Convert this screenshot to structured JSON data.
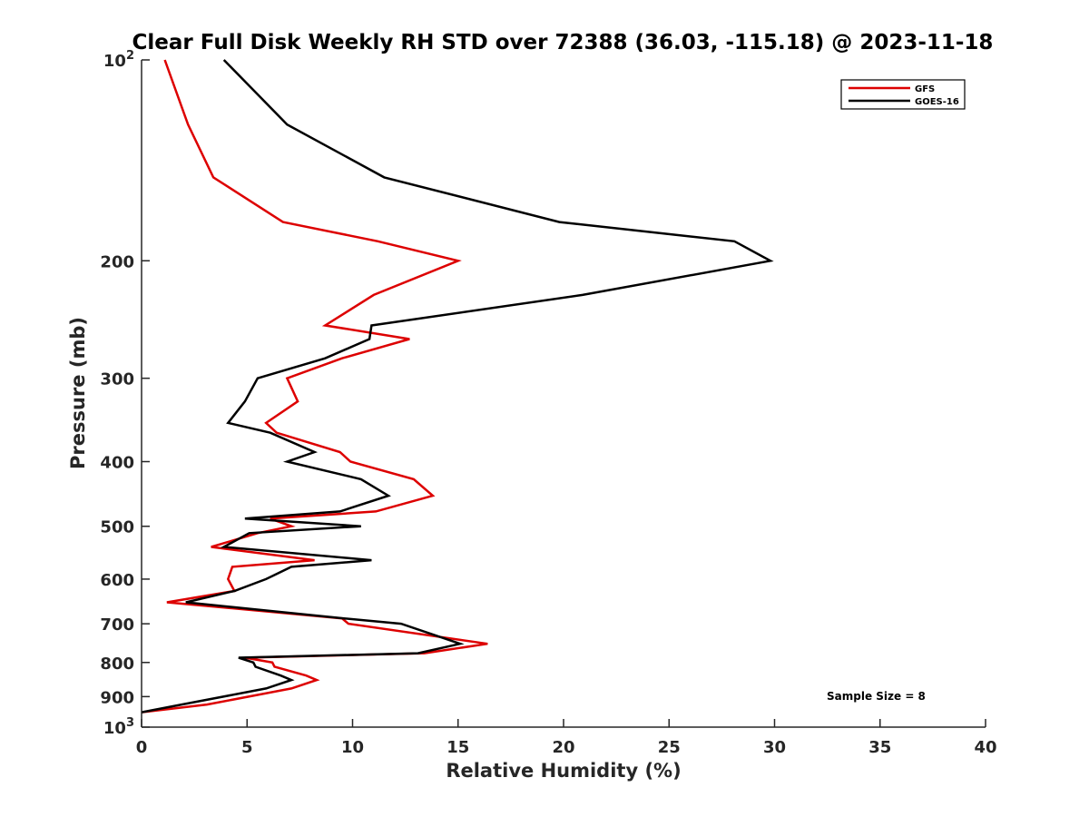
{
  "chart_data": {
    "type": "line",
    "title": "Clear Full Disk Weekly RH STD over 72388 (36.03, -115.18) @ 2023-11-18",
    "xlabel": "Relative Humidity (%)",
    "ylabel": "Pressure (mb)",
    "xlim": [
      0,
      40
    ],
    "ylim": [
      100,
      1000
    ],
    "y_scale": "log",
    "y_reversed": true,
    "x_ticks": [
      {
        "value": 0,
        "label": "0"
      },
      {
        "value": 5,
        "label": "5"
      },
      {
        "value": 10,
        "label": "10"
      },
      {
        "value": 15,
        "label": "15"
      },
      {
        "value": 20,
        "label": "20"
      },
      {
        "value": 25,
        "label": "25"
      },
      {
        "value": 30,
        "label": "30"
      },
      {
        "value": 35,
        "label": "35"
      },
      {
        "value": 40,
        "label": "40"
      }
    ],
    "y_ticks": [
      {
        "value": 100,
        "label": "10",
        "sup": "2"
      },
      {
        "value": 200,
        "label": "200",
        "sup": ""
      },
      {
        "value": 300,
        "label": "300",
        "sup": ""
      },
      {
        "value": 400,
        "label": "400",
        "sup": ""
      },
      {
        "value": 500,
        "label": "500",
        "sup": ""
      },
      {
        "value": 600,
        "label": "600",
        "sup": ""
      },
      {
        "value": 700,
        "label": "700",
        "sup": ""
      },
      {
        "value": 800,
        "label": "800",
        "sup": ""
      },
      {
        "value": 900,
        "label": "900",
        "sup": ""
      },
      {
        "value": 1000,
        "label": "10",
        "sup": "3"
      }
    ],
    "grid": false,
    "legend_position": "top-right",
    "annotation": "Sample Size = 8",
    "series": [
      {
        "name": "GFS",
        "color": "#dd0000",
        "points": [
          [
            1.1,
            100
          ],
          [
            2.2,
            125
          ],
          [
            3.4,
            150
          ],
          [
            6.7,
            175
          ],
          [
            11.2,
            187
          ],
          [
            15.0,
            200
          ],
          [
            11.0,
            225
          ],
          [
            8.7,
            250
          ],
          [
            12.7,
            262
          ],
          [
            9.5,
            280
          ],
          [
            6.9,
            300
          ],
          [
            7.4,
            325
          ],
          [
            5.9,
            350
          ],
          [
            6.4,
            362
          ],
          [
            9.4,
            387
          ],
          [
            9.9,
            400
          ],
          [
            12.9,
            425
          ],
          [
            13.8,
            450
          ],
          [
            11.1,
            475
          ],
          [
            6.1,
            487
          ],
          [
            7.1,
            500
          ],
          [
            5.5,
            512
          ],
          [
            3.3,
            537
          ],
          [
            8.2,
            562
          ],
          [
            4.3,
            575
          ],
          [
            4.1,
            600
          ],
          [
            4.4,
            625
          ],
          [
            1.2,
            650
          ],
          [
            9.5,
            687
          ],
          [
            9.8,
            700
          ],
          [
            16.4,
            750
          ],
          [
            13.4,
            775
          ],
          [
            4.9,
            787
          ],
          [
            6.2,
            800
          ],
          [
            6.3,
            812
          ],
          [
            7.8,
            837
          ],
          [
            8.3,
            850
          ],
          [
            7.1,
            875
          ],
          [
            3.1,
            925
          ],
          [
            0.0,
            950
          ]
        ]
      },
      {
        "name": "GOES-16",
        "color": "#000000",
        "points": [
          [
            3.9,
            100
          ],
          [
            6.9,
            125
          ],
          [
            11.5,
            150
          ],
          [
            19.8,
            175
          ],
          [
            28.1,
            187
          ],
          [
            29.8,
            200
          ],
          [
            20.9,
            225
          ],
          [
            10.9,
            250
          ],
          [
            10.8,
            262
          ],
          [
            8.7,
            280
          ],
          [
            5.5,
            300
          ],
          [
            4.9,
            325
          ],
          [
            4.1,
            350
          ],
          [
            6.1,
            362
          ],
          [
            8.2,
            387
          ],
          [
            6.9,
            400
          ],
          [
            10.4,
            425
          ],
          [
            11.7,
            450
          ],
          [
            9.4,
            475
          ],
          [
            4.9,
            487
          ],
          [
            10.4,
            500
          ],
          [
            5.1,
            512
          ],
          [
            3.9,
            537
          ],
          [
            10.9,
            562
          ],
          [
            7.1,
            575
          ],
          [
            5.9,
            600
          ],
          [
            4.4,
            625
          ],
          [
            2.1,
            650
          ],
          [
            9.6,
            687
          ],
          [
            12.3,
            700
          ],
          [
            15.1,
            750
          ],
          [
            13.1,
            775
          ],
          [
            4.6,
            787
          ],
          [
            5.3,
            800
          ],
          [
            5.4,
            812
          ],
          [
            6.6,
            837
          ],
          [
            7.1,
            850
          ],
          [
            5.9,
            875
          ],
          [
            1.9,
            925
          ],
          [
            0.0,
            950
          ]
        ]
      }
    ]
  }
}
